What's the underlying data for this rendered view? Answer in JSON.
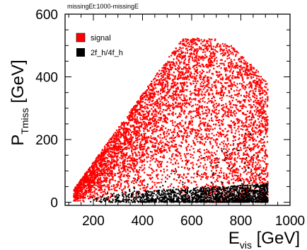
{
  "chart_data": {
    "type": "scatter",
    "title": "missingEt:1000-missingE",
    "xlabel": {
      "main": "E",
      "sub": "vis",
      "unit": " [GeV]"
    },
    "ylabel": {
      "main": "P",
      "sub": "Tmiss",
      "unit": " [GeV]"
    },
    "xlim": [
      85,
      1000
    ],
    "ylim": [
      -10,
      600
    ],
    "xticks": [
      200,
      400,
      600,
      800,
      1000
    ],
    "yticks": [
      0,
      200,
      400,
      600
    ],
    "grid": false,
    "legend_position": "top-left",
    "series": [
      {
        "name": "signal",
        "color": "#ff0000",
        "region": {
          "x_range": [
            120,
            910
          ],
          "lower_edge_y": 0,
          "upper_edge": [
            [
              120,
              40
            ],
            [
              560,
              520
            ],
            [
              680,
              525
            ],
            [
              760,
              500
            ],
            [
              840,
              440
            ],
            [
              880,
              410
            ],
            [
              910,
              380
            ]
          ]
        }
      },
      {
        "name": "2f_h/4f_h",
        "color": "#000000",
        "region": {
          "x_range": [
            170,
            910
          ],
          "y_band": [
            0,
            60
          ],
          "sparse_up_to_y": 250
        }
      }
    ]
  }
}
